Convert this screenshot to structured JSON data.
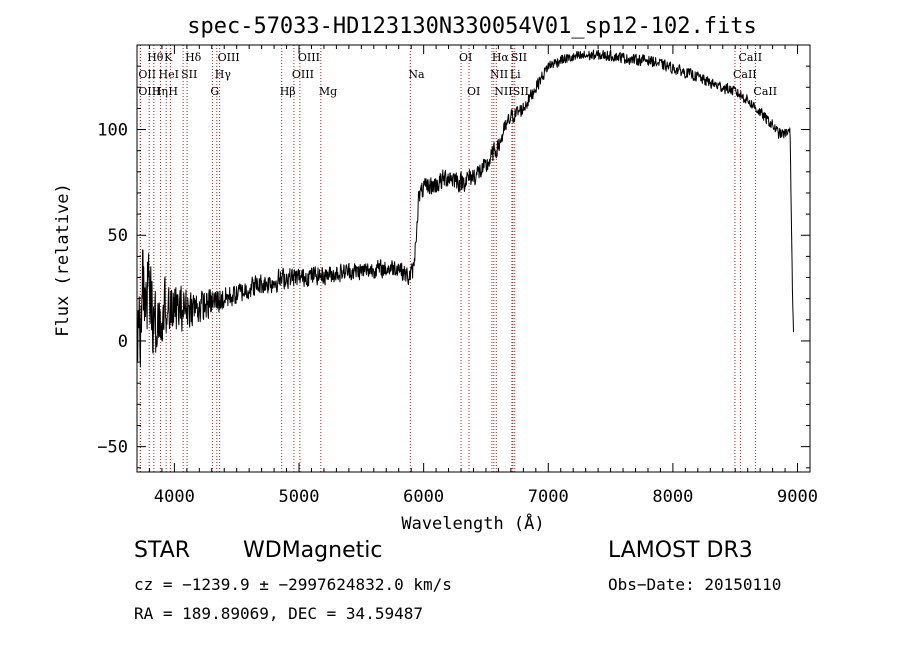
{
  "chart_data": {
    "type": "line",
    "title": "spec-57033-HD123130N330054V01_sp12-102.fits",
    "xlabel": "Wavelength (Å)",
    "ylabel": "Flux (relative)",
    "xlim": [
      3700,
      9100
    ],
    "ylim": [
      -62,
      140
    ],
    "xticks": [
      4000,
      5000,
      6000,
      7000,
      8000,
      9000
    ],
    "yticks": [
      -50,
      0,
      50,
      100
    ],
    "grid": false,
    "line_color": "#000000",
    "marker_color": "#b22222",
    "spectral_lines": [
      {
        "label": "Hθ",
        "wavelength": 3798,
        "row": 0
      },
      {
        "label": "K",
        "wavelength": 3934,
        "row": 0
      },
      {
        "label": "Hδ",
        "wavelength": 4102,
        "row": 0
      },
      {
        "label": "OII",
        "wavelength": 3727,
        "row": 1
      },
      {
        "label": "HeI",
        "wavelength": 3889,
        "row": 1
      },
      {
        "label": "SII",
        "wavelength": 4070,
        "row": 1
      },
      {
        "label": "OIII",
        "wavelength": 3727,
        "row": 2
      },
      {
        "label": "Hη",
        "wavelength": 3835,
        "row": 2
      },
      {
        "label": "H",
        "wavelength": 3968,
        "row": 2
      },
      {
        "label": "OIII",
        "wavelength": 4363,
        "row": 0
      },
      {
        "label": "Hγ",
        "wavelength": 4340,
        "row": 1
      },
      {
        "label": "G",
        "wavelength": 4305,
        "row": 2
      },
      {
        "label": "OIII",
        "wavelength": 5007,
        "row": 0
      },
      {
        "label": "OIII",
        "wavelength": 4959,
        "row": 1
      },
      {
        "label": "Hβ",
        "wavelength": 4861,
        "row": 2
      },
      {
        "label": "Mg",
        "wavelength": 5175,
        "row": 2
      },
      {
        "label": "Na",
        "wavelength": 5893,
        "row": 1
      },
      {
        "label": "OI",
        "wavelength": 6300,
        "row": 0
      },
      {
        "label": "OI",
        "wavelength": 6364,
        "row": 2
      },
      {
        "label": "Hα",
        "wavelength": 6563,
        "row": 0
      },
      {
        "label": "SII",
        "wavelength": 6716,
        "row": 0
      },
      {
        "label": "NII",
        "wavelength": 6548,
        "row": 1
      },
      {
        "label": "Li",
        "wavelength": 6708,
        "row": 1
      },
      {
        "label": "NII",
        "wavelength": 6583,
        "row": 2
      },
      {
        "label": "SII",
        "wavelength": 6731,
        "row": 2
      },
      {
        "label": "CaII",
        "wavelength": 8542,
        "row": 0
      },
      {
        "label": "CaII",
        "wavelength": 8498,
        "row": 1
      },
      {
        "label": "CaII",
        "wavelength": 8662,
        "row": 2
      }
    ],
    "anchors": [
      [
        3700,
        -18
      ],
      [
        3730,
        15
      ],
      [
        3760,
        30
      ],
      [
        3800,
        15
      ],
      [
        3850,
        8
      ],
      [
        3900,
        15
      ],
      [
        3950,
        18
      ],
      [
        4000,
        14
      ],
      [
        4050,
        15
      ],
      [
        4100,
        16
      ],
      [
        4200,
        16
      ],
      [
        4300,
        18
      ],
      [
        4400,
        20
      ],
      [
        4500,
        22
      ],
      [
        4600,
        25
      ],
      [
        4700,
        27
      ],
      [
        4800,
        28
      ],
      [
        4900,
        30
      ],
      [
        5000,
        30
      ],
      [
        5100,
        31
      ],
      [
        5200,
        31
      ],
      [
        5300,
        32
      ],
      [
        5400,
        33
      ],
      [
        5500,
        33
      ],
      [
        5600,
        34
      ],
      [
        5700,
        34
      ],
      [
        5800,
        35
      ],
      [
        5880,
        30
      ],
      [
        5920,
        34
      ],
      [
        5940,
        50
      ],
      [
        5960,
        68
      ],
      [
        6000,
        72
      ],
      [
        6100,
        74
      ],
      [
        6200,
        78
      ],
      [
        6300,
        75
      ],
      [
        6400,
        78
      ],
      [
        6500,
        82
      ],
      [
        6550,
        88
      ],
      [
        6600,
        92
      ],
      [
        6650,
        100
      ],
      [
        6700,
        106
      ],
      [
        6800,
        110
      ],
      [
        6900,
        120
      ],
      [
        7000,
        130
      ],
      [
        7100,
        133
      ],
      [
        7200,
        134
      ],
      [
        7300,
        135
      ],
      [
        7400,
        135
      ],
      [
        7500,
        135
      ],
      [
        7600,
        134
      ],
      [
        7700,
        133
      ],
      [
        7800,
        133
      ],
      [
        7900,
        131
      ],
      [
        8000,
        129
      ],
      [
        8100,
        127
      ],
      [
        8200,
        125
      ],
      [
        8300,
        122
      ],
      [
        8400,
        120
      ],
      [
        8500,
        118
      ],
      [
        8600,
        114
      ],
      [
        8700,
        108
      ],
      [
        8800,
        102
      ],
      [
        8850,
        98
      ],
      [
        8900,
        98
      ],
      [
        8940,
        100
      ],
      [
        8960,
        20
      ],
      [
        8970,
        0
      ]
    ],
    "noise": [
      [
        3700,
        28
      ],
      [
        3800,
        26
      ],
      [
        3900,
        18
      ],
      [
        4000,
        14
      ],
      [
        4150,
        10
      ],
      [
        4300,
        8
      ],
      [
        4500,
        6
      ],
      [
        4800,
        6
      ],
      [
        5200,
        5
      ],
      [
        5800,
        5
      ],
      [
        5950,
        5
      ],
      [
        6200,
        6
      ],
      [
        6600,
        5
      ],
      [
        7000,
        3
      ],
      [
        8000,
        3
      ],
      [
        8900,
        3
      ],
      [
        8970,
        0
      ]
    ]
  },
  "info": {
    "object_type": "STAR",
    "subclass": "WDMagnetic",
    "survey": "LAMOST DR3",
    "redshift": "cz = −1239.9 ± −2997624832.0 km/s",
    "obs_date": "Obs−Date: 20150110",
    "coords": "RA = 189.89069, DEC =  34.59487"
  }
}
